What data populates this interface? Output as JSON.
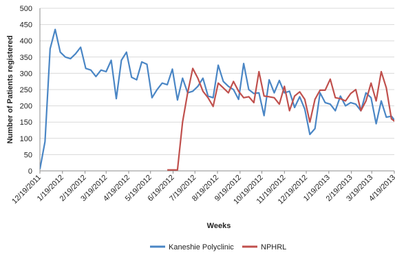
{
  "chart_data": {
    "type": "line",
    "title": "",
    "xlabel": "Weeks",
    "ylabel": "Number of Patients registered",
    "ylim": [
      0,
      500
    ],
    "y_ticks": [
      0,
      50,
      100,
      150,
      200,
      250,
      300,
      350,
      400,
      450,
      500
    ],
    "x_tick_labels": [
      "12/19/2011",
      "1/19/2012",
      "2/19/2012",
      "3/19/2012",
      "4/19/2012",
      "5/19/2012",
      "6/19/2012",
      "7/19/2012",
      "8/19/2012",
      "9/19/2012",
      "10/19/2012",
      "11/19/2012",
      "12/19/2012",
      "1/19/2013",
      "2/19/2013",
      "3/19/2013",
      "4/19/2013"
    ],
    "grid": true,
    "legend_position": "bottom",
    "series": [
      {
        "name": "Kaneshie Polyclinic",
        "color": "#4a86c5",
        "x": [
          "2011-12-19",
          "2011-12-26",
          "2012-01-02",
          "2012-01-09",
          "2012-01-16",
          "2012-01-23",
          "2012-01-30",
          "2012-02-06",
          "2012-02-13",
          "2012-02-20",
          "2012-02-27",
          "2012-03-05",
          "2012-03-12",
          "2012-03-19",
          "2012-03-26",
          "2012-04-02",
          "2012-04-09",
          "2012-04-16",
          "2012-04-23",
          "2012-04-30",
          "2012-05-07",
          "2012-05-14",
          "2012-05-21",
          "2012-05-28",
          "2012-06-04",
          "2012-06-11",
          "2012-06-18",
          "2012-06-25",
          "2012-07-02",
          "2012-07-09",
          "2012-07-16",
          "2012-07-23",
          "2012-07-30",
          "2012-08-06",
          "2012-08-13",
          "2012-08-20",
          "2012-08-27",
          "2012-09-03",
          "2012-09-10",
          "2012-09-17",
          "2012-09-24",
          "2012-10-01",
          "2012-10-08",
          "2012-10-15",
          "2012-10-22",
          "2012-10-29",
          "2012-11-05",
          "2012-11-12",
          "2012-11-19",
          "2012-11-26",
          "2012-12-03",
          "2012-12-10",
          "2012-12-17",
          "2012-12-24",
          "2012-12-31",
          "2013-01-07",
          "2013-01-14",
          "2013-01-21",
          "2013-01-28",
          "2013-02-04",
          "2013-02-11",
          "2013-02-18",
          "2013-02-25",
          "2013-03-04",
          "2013-03-11",
          "2013-03-18",
          "2013-03-25",
          "2013-04-01",
          "2013-04-08",
          "2013-04-15",
          "2013-04-22"
        ],
        "values": [
          5,
          90,
          375,
          435,
          365,
          350,
          345,
          360,
          380,
          315,
          310,
          290,
          310,
          305,
          340,
          222,
          340,
          365,
          288,
          280,
          335,
          328,
          225,
          250,
          270,
          265,
          313,
          218,
          285,
          240,
          245,
          260,
          285,
          230,
          225,
          325,
          275,
          260,
          250,
          220,
          330,
          250,
          238,
          240,
          170,
          280,
          240,
          278,
          240,
          245,
          195,
          228,
          190,
          112,
          130,
          240,
          210,
          205,
          185,
          230,
          200,
          210,
          205,
          185,
          240,
          225,
          145,
          215,
          165,
          168,
          148
        ]
      },
      {
        "name": "NPHRL",
        "color": "#c0504d",
        "x": [
          "2012-06-11",
          "2012-06-18",
          "2012-06-25",
          "2012-07-02",
          "2012-07-09",
          "2012-07-16",
          "2012-07-23",
          "2012-07-30",
          "2012-08-06",
          "2012-08-13",
          "2012-08-20",
          "2012-08-27",
          "2012-09-03",
          "2012-09-10",
          "2012-09-17",
          "2012-09-24",
          "2012-10-01",
          "2012-10-08",
          "2012-10-15",
          "2012-10-22",
          "2012-10-29",
          "2012-11-05",
          "2012-11-12",
          "2012-11-19",
          "2012-11-26",
          "2012-12-03",
          "2012-12-10",
          "2012-12-17",
          "2012-12-24",
          "2012-12-31",
          "2013-01-07",
          "2013-01-14",
          "2013-01-21",
          "2013-01-28",
          "2013-02-04",
          "2013-02-11",
          "2013-02-18",
          "2013-02-25",
          "2013-03-04",
          "2013-03-11",
          "2013-03-18",
          "2013-03-25",
          "2013-04-01",
          "2013-04-08",
          "2013-04-15",
          "2013-04-22"
        ],
        "values": [
          3,
          3,
          3,
          150,
          240,
          315,
          285,
          245,
          225,
          198,
          270,
          255,
          240,
          275,
          245,
          225,
          228,
          210,
          305,
          230,
          228,
          225,
          205,
          260,
          185,
          230,
          243,
          220,
          150,
          220,
          248,
          248,
          282,
          225,
          222,
          215,
          238,
          250,
          185,
          215,
          270,
          215,
          305,
          255,
          160,
          148
        ]
      }
    ]
  }
}
